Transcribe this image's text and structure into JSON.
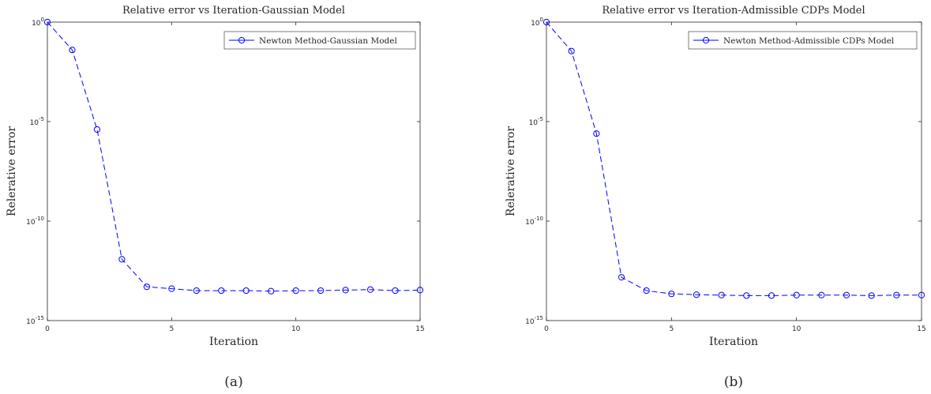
{
  "chart_data": [
    {
      "type": "line",
      "title": "Relative error vs Iteration-Gaussian Model",
      "xlabel": "Iteration",
      "ylabel": "Relerative error",
      "yscale": "log",
      "xlim": [
        0,
        15
      ],
      "ylim": [
        1e-15,
        1
      ],
      "x_ticks": [
        0,
        5,
        10,
        15
      ],
      "y_ticks": [
        {
          "value": 1,
          "base": "10",
          "exp": "0"
        },
        {
          "value": 1e-05,
          "base": "10",
          "exp": "-5"
        },
        {
          "value": 1e-10,
          "base": "10",
          "exp": "-10"
        },
        {
          "value": 1e-15,
          "base": "10",
          "exp": "-15"
        }
      ],
      "grid": false,
      "legend_position": "top-right",
      "caption": "(a)",
      "series": [
        {
          "name": "Newton Method-Gaussian Model",
          "color": "#0000ff",
          "line_style": "dashed",
          "marker": "circle",
          "x": [
            0,
            1,
            2,
            3,
            4,
            5,
            6,
            7,
            8,
            9,
            10,
            11,
            12,
            13,
            14,
            15
          ],
          "y": [
            1,
            0.04,
            4e-06,
            1.2e-12,
            5e-14,
            4e-14,
            3.2e-14,
            3.2e-14,
            3.2e-14,
            3e-14,
            3.2e-14,
            3.2e-14,
            3.4e-14,
            3.6e-14,
            3.2e-14,
            3.4e-14
          ]
        }
      ]
    },
    {
      "type": "line",
      "title": "Relative error vs Iteration-Admissible CDPs Model",
      "xlabel": "Iteration",
      "ylabel": "Relerative error",
      "yscale": "log",
      "xlim": [
        0,
        15
      ],
      "ylim": [
        1e-15,
        1
      ],
      "x_ticks": [
        0,
        5,
        10,
        15
      ],
      "y_ticks": [
        {
          "value": 1,
          "base": "10",
          "exp": "0"
        },
        {
          "value": 1e-05,
          "base": "10",
          "exp": "-5"
        },
        {
          "value": 1e-10,
          "base": "10",
          "exp": "-10"
        },
        {
          "value": 1e-15,
          "base": "10",
          "exp": "-15"
        }
      ],
      "grid": false,
      "legend_position": "top-right",
      "caption": "(b)",
      "series": [
        {
          "name": "Newton Method-Admissible CDPs Model",
          "color": "#0000ff",
          "line_style": "dashed",
          "marker": "circle",
          "x": [
            0,
            1,
            2,
            3,
            4,
            5,
            6,
            7,
            8,
            9,
            10,
            11,
            12,
            13,
            14,
            15
          ],
          "y": [
            1,
            0.035,
            2.5e-06,
            1.5e-13,
            3.2e-14,
            2.2e-14,
            2e-14,
            1.9e-14,
            1.8e-14,
            1.8e-14,
            1.9e-14,
            1.9e-14,
            1.9e-14,
            1.8e-14,
            1.9e-14,
            1.9e-14
          ]
        }
      ]
    }
  ]
}
